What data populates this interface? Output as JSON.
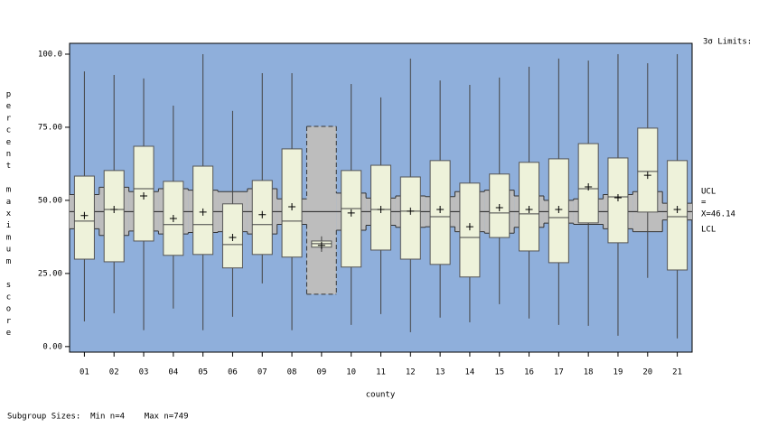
{
  "chart_data": {
    "type": "box",
    "y_label": "percent maximum score",
    "x_label": "county",
    "limits_title": "3σ Limits:",
    "ucl_label": "UCL",
    "eq_label": "=",
    "center_label": "X=46.14",
    "lcl_label": "LCL",
    "footer": "Subgroup Sizes:  Min n=4    Max n=749",
    "center": 46.14,
    "categories": [
      "01",
      "02",
      "03",
      "04",
      "05",
      "06",
      "07",
      "08",
      "09",
      "10",
      "11",
      "12",
      "13",
      "14",
      "15",
      "16",
      "17",
      "18",
      "19",
      "20",
      "21"
    ],
    "whisker_high": [
      94.1,
      92.9,
      91.7,
      82.4,
      100,
      80.6,
      93.5,
      93.5,
      37.7,
      89.8,
      85.2,
      98.5,
      91.0,
      89.5,
      92.0,
      95.7,
      98.5,
      97.8,
      100,
      96.9,
      100
    ],
    "q3": [
      58.3,
      60.2,
      68.5,
      56.5,
      61.7,
      48.8,
      56.8,
      67.6,
      36.1,
      60.2,
      62.0,
      58.0,
      63.6,
      55.9,
      59.0,
      63.0,
      64.2,
      69.4,
      64.5,
      74.7,
      63.6
    ],
    "median": [
      42.9,
      46.9,
      54.0,
      41.7,
      41.7,
      34.9,
      41.7,
      42.9,
      35.2,
      47.2,
      46.9,
      46.3,
      44.4,
      37.3,
      45.7,
      45.4,
      44.1,
      54.0,
      51.2,
      59.9,
      44.4
    ],
    "q1": [
      29.9,
      29.0,
      36.1,
      31.2,
      31.5,
      26.9,
      31.5,
      30.6,
      34.0,
      27.2,
      33.0,
      29.9,
      28.1,
      23.8,
      37.3,
      32.7,
      28.7,
      42.3,
      35.5,
      46.0,
      26.2
    ],
    "whisker_low": [
      8.6,
      11.4,
      5.6,
      13.0,
      5.6,
      10.2,
      21.6,
      5.6,
      32.4,
      7.4,
      11.1,
      4.9,
      9.9,
      8.3,
      14.5,
      9.6,
      7.4,
      7.1,
      3.7,
      23.5,
      2.8
    ],
    "mean": [
      44.8,
      46.9,
      51.5,
      43.8,
      46.0,
      37.3,
      45.1,
      47.8,
      34.6,
      45.7,
      46.9,
      46.3,
      46.9,
      41.0,
      47.5,
      46.9,
      46.9,
      54.6,
      50.9,
      58.6,
      46.9
    ],
    "ucl": [
      52.0,
      54.5,
      53.0,
      54.0,
      53.5,
      53.0,
      54.0,
      50.5,
      75.3,
      52.5,
      50.8,
      51.5,
      51.3,
      53.0,
      53.5,
      51.5,
      50.0,
      50.5,
      52.0,
      53.0,
      49.0
    ],
    "lcl": [
      40.3,
      38.0,
      39.5,
      38.5,
      39.0,
      39.3,
      38.5,
      41.8,
      17.9,
      39.8,
      41.5,
      40.8,
      41.0,
      39.3,
      38.8,
      40.8,
      42.2,
      41.8,
      40.3,
      39.3,
      43.3
    ],
    "dashed_limits": [
      "09"
    ],
    "plot_color": "#8fafdb",
    "band_color": "#bdbdbd",
    "box_color": "#eef2da",
    "ylim": [
      -1.9,
      103.7
    ],
    "yticks": [
      {
        "value": 0,
        "label": "0.00"
      },
      {
        "value": 25,
        "label": "25.00"
      },
      {
        "value": 50,
        "label": "50.00"
      },
      {
        "value": 75,
        "label": "75.00"
      },
      {
        "value": 100,
        "label": "100.0"
      }
    ]
  }
}
